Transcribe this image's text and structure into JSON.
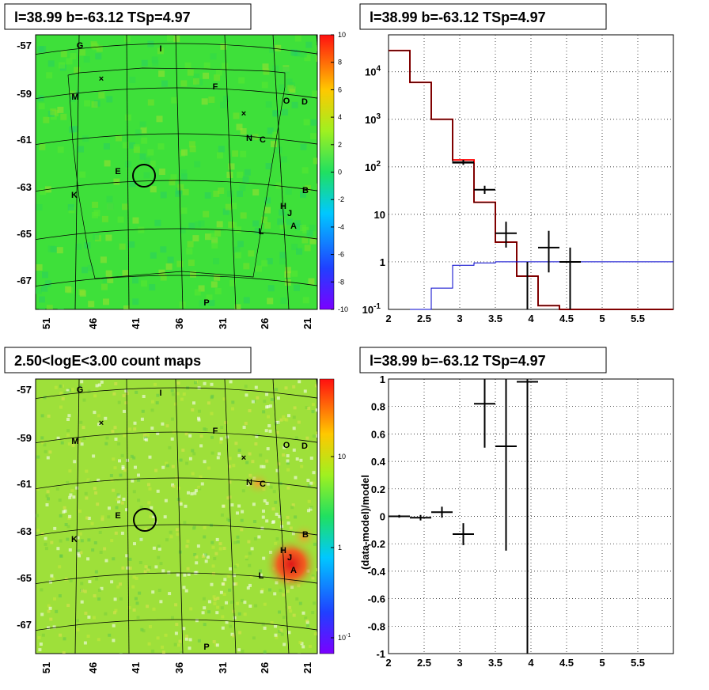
{
  "panels": {
    "tl_title": "l=38.99 b=-63.12 TSp=4.97",
    "tr_title": "l=38.99 b=-63.12 TSp=4.97",
    "bl_title": "2.50<logE<3.00 count maps",
    "br_title": "l=38.99 b=-63.12 TSp=4.97"
  },
  "maps": {
    "lon_ticks": [
      "51",
      "46",
      "41",
      "36",
      "31",
      "26",
      "21"
    ],
    "lat_ticks": [
      "-57",
      "-59",
      "-61",
      "-63",
      "-65",
      "-67"
    ],
    "source_labels": [
      "G",
      "I",
      "M",
      "F",
      "O",
      "D",
      "N",
      "C",
      "E",
      "K",
      "B",
      "H",
      "J",
      "A",
      "L",
      "P"
    ],
    "residual_colorbar": [
      "10",
      "8",
      "6",
      "4",
      "2",
      "0",
      "-2",
      "-4",
      "-6",
      "-8",
      "-10"
    ],
    "count_colorbar": [
      "10",
      "1",
      "10-1"
    ],
    "colors": {
      "map_green": "#3ee03a",
      "count_bg": "#9ee03a",
      "hot": "#e83020",
      "circle": "#000000"
    }
  },
  "chart_data": [
    {
      "type": "line",
      "title": "l=38.99 b=-63.12 TSp=4.97",
      "xlabel": "",
      "ylabel": "",
      "xlim": [
        2,
        6
      ],
      "ylim": [
        0.1,
        60000
      ],
      "yscale": "log",
      "x_ticks": [
        "2",
        "2.5",
        "3",
        "3.5",
        "4",
        "4.5",
        "5",
        "5.5"
      ],
      "y_ticks": [
        "10^-1",
        "1",
        "10",
        "10^2",
        "10^3",
        "10^4"
      ],
      "grid": true,
      "series": [
        {
          "color": "#ff0000",
          "step_edges": [
            2,
            2.3,
            2.6,
            2.9,
            3.2,
            3.5,
            3.8,
            4.1,
            4.4,
            6
          ],
          "values": [
            28000,
            6000,
            1000,
            140,
            18,
            2.6,
            0.5,
            0.12,
            0.1
          ]
        },
        {
          "color": "#000000",
          "step_edges": [
            2,
            2.3,
            2.6,
            2.9,
            3.2,
            3.5,
            3.8,
            4.1,
            4.4,
            6
          ],
          "values": [
            28000,
            6000,
            1000,
            120,
            18,
            2.6,
            0.5,
            0.12,
            0.1
          ]
        },
        {
          "color": "#0000cc",
          "step_edges": [
            2.3,
            2.6,
            2.9,
            3.2,
            3.5,
            3.8,
            4.1,
            4.4,
            6
          ],
          "values": [
            0.1,
            0.28,
            0.85,
            0.95,
            1,
            1,
            1,
            1
          ]
        },
        {
          "color": "#000000",
          "points": [
            {
              "x": 3.05,
              "y": 125,
              "xerr": 0.15,
              "ylo": 110,
              "yhi": 140
            },
            {
              "x": 3.35,
              "y": 33,
              "xerr": 0.15,
              "ylo": 27,
              "yhi": 40
            },
            {
              "x": 3.65,
              "y": 4,
              "xerr": 0.15,
              "ylo": 2,
              "yhi": 7
            },
            {
              "x": 4.25,
              "y": 2,
              "xerr": 0.15,
              "ylo": 0.6,
              "yhi": 4.5
            },
            {
              "x": 3.95,
              "y": 1,
              "xerr": 0,
              "ylo": 0.1,
              "yhi": 1
            },
            {
              "x": 4.55,
              "y": 1,
              "xerr": 0.15,
              "ylo": 0.1,
              "yhi": 2
            }
          ]
        }
      ]
    },
    {
      "type": "scatter",
      "title": "l=38.99 b=-63.12 TSp=4.97",
      "xlabel": "",
      "ylabel": "(data-model)/model",
      "xlim": [
        2,
        6
      ],
      "ylim": [
        -1,
        1
      ],
      "x_ticks": [
        "2",
        "2.5",
        "3",
        "3.5",
        "4",
        "4.5",
        "5",
        "5.5"
      ],
      "y_ticks": [
        "-1",
        "-0.8",
        "-0.6",
        "-0.4",
        "-0.2",
        "0",
        "0.2",
        "0.4",
        "0.6",
        "0.8",
        "1"
      ],
      "grid": true,
      "points": [
        {
          "x": 2.15,
          "y": 0.0,
          "xerr": 0.15,
          "yerr": 0.01
        },
        {
          "x": 2.45,
          "y": -0.01,
          "xerr": 0.15,
          "yerr": 0.02
        },
        {
          "x": 2.75,
          "y": 0.03,
          "xerr": 0.15,
          "yerr": 0.04
        },
        {
          "x": 3.05,
          "y": -0.13,
          "xerr": 0.15,
          "yerr": 0.08
        },
        {
          "x": 3.35,
          "y": 0.82,
          "xerr": 0.15,
          "yerr": 0.32
        },
        {
          "x": 3.65,
          "y": 0.51,
          "xerr": 0.15,
          "yerr": 0.76
        },
        {
          "x": 3.95,
          "y": 0.98,
          "xerr": 0.15,
          "yerr": 1.98
        }
      ]
    }
  ]
}
